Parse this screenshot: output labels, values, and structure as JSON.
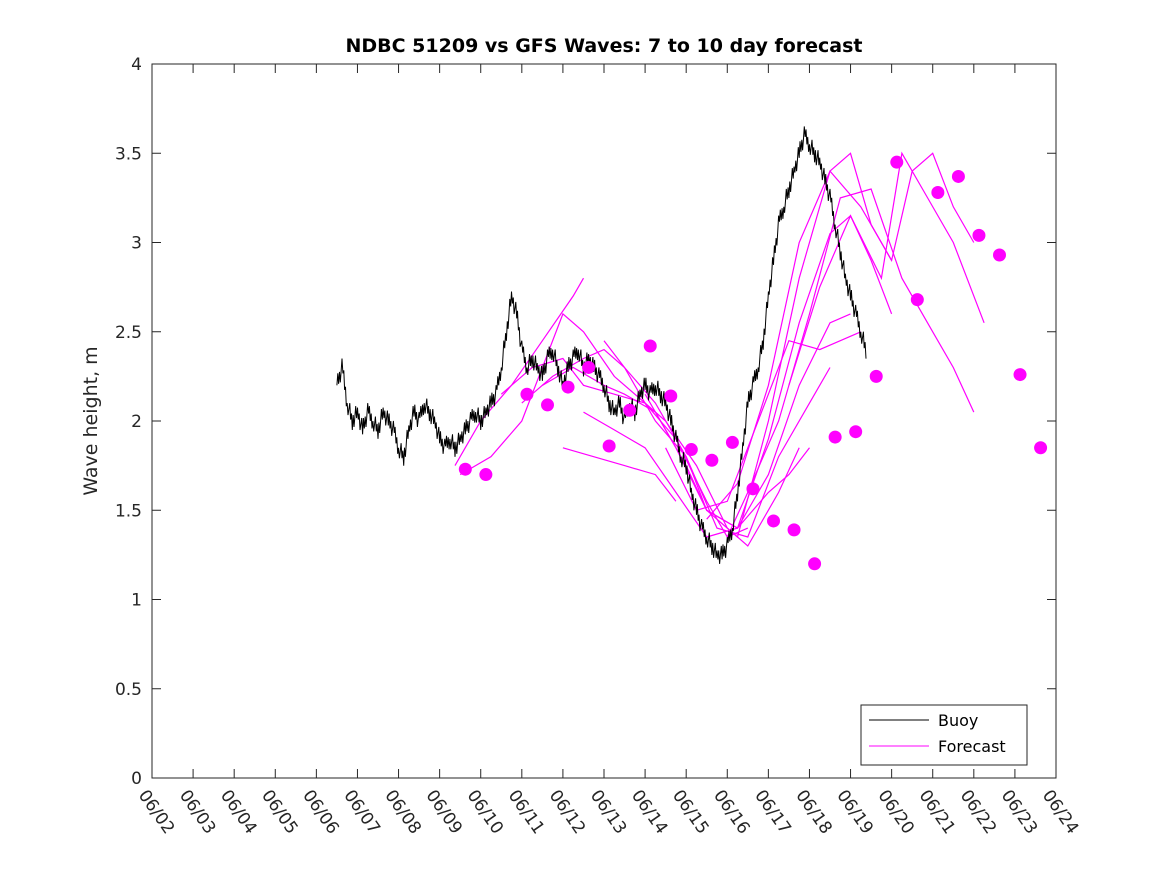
{
  "chart_data": {
    "type": "line",
    "title": "NDBC 51209 vs GFS Waves: 7 to 10 day forecast",
    "xlabel": "",
    "ylabel": "Wave height, m",
    "xlim": [
      "06/02",
      "06/24"
    ],
    "ylim": [
      0,
      4
    ],
    "x_ticks": [
      "06/02",
      "06/03",
      "06/04",
      "06/05",
      "06/06",
      "06/07",
      "06/08",
      "06/09",
      "06/10",
      "06/11",
      "06/12",
      "06/13",
      "06/14",
      "06/15",
      "06/16",
      "06/17",
      "06/18",
      "06/19",
      "06/20",
      "06/21",
      "06/22",
      "06/23",
      "06/24"
    ],
    "y_ticks": [
      "0",
      "0.5",
      "1",
      "1.5",
      "2",
      "2.5",
      "3",
      "3.5",
      "4"
    ],
    "grid": false,
    "legend": {
      "position": "bottom-right",
      "entries": [
        {
          "label": "Buoy",
          "color": "#000000"
        },
        {
          "label": "Forecast",
          "color": "#ff00ff"
        }
      ]
    },
    "colors": {
      "buoy": "#000000",
      "forecast": "#ff00ff"
    },
    "buoy": {
      "name": "Buoy",
      "points": [
        [
          "06/06 12:00",
          2.2
        ],
        [
          "06/06 15:00",
          2.3
        ],
        [
          "06/06 18:00",
          2.1
        ],
        [
          "06/06 21:00",
          2.0
        ],
        [
          "06/07 00:00",
          2.05
        ],
        [
          "06/07 03:00",
          1.95
        ],
        [
          "06/07 06:00",
          2.05
        ],
        [
          "06/07 09:00",
          2.0
        ],
        [
          "06/07 12:00",
          1.95
        ],
        [
          "06/07 15:00",
          2.05
        ],
        [
          "06/07 18:00",
          2.0
        ],
        [
          "06/07 21:00",
          1.95
        ],
        [
          "06/08 00:00",
          1.85
        ],
        [
          "06/08 03:00",
          1.8
        ],
        [
          "06/08 06:00",
          1.95
        ],
        [
          "06/08 09:00",
          2.05
        ],
        [
          "06/08 12:00",
          2.0
        ],
        [
          "06/08 15:00",
          2.1
        ],
        [
          "06/08 18:00",
          2.05
        ],
        [
          "06/08 21:00",
          2.0
        ],
        [
          "06/09 00:00",
          1.9
        ],
        [
          "06/09 03:00",
          1.85
        ],
        [
          "06/09 06:00",
          1.9
        ],
        [
          "06/09 09:00",
          1.85
        ],
        [
          "06/09 12:00",
          1.9
        ],
        [
          "06/09 15:00",
          1.95
        ],
        [
          "06/09 18:00",
          2.0
        ],
        [
          "06/09 21:00",
          2.05
        ],
        [
          "06/10 00:00",
          2.0
        ],
        [
          "06/10 03:00",
          2.05
        ],
        [
          "06/10 06:00",
          2.1
        ],
        [
          "06/10 09:00",
          2.15
        ],
        [
          "06/10 12:00",
          2.3
        ],
        [
          "06/10 15:00",
          2.5
        ],
        [
          "06/10 18:00",
          2.7
        ],
        [
          "06/10 21:00",
          2.6
        ],
        [
          "06/11 00:00",
          2.4
        ],
        [
          "06/11 03:00",
          2.3
        ],
        [
          "06/11 06:00",
          2.35
        ],
        [
          "06/11 09:00",
          2.3
        ],
        [
          "06/11 12:00",
          2.25
        ],
        [
          "06/11 15:00",
          2.35
        ],
        [
          "06/11 18:00",
          2.4
        ],
        [
          "06/11 21:00",
          2.3
        ],
        [
          "06/12 00:00",
          2.2
        ],
        [
          "06/12 03:00",
          2.3
        ],
        [
          "06/12 06:00",
          2.35
        ],
        [
          "06/12 09:00",
          2.4
        ],
        [
          "06/12 12:00",
          2.3
        ],
        [
          "06/12 15:00",
          2.35
        ],
        [
          "06/12 18:00",
          2.3
        ],
        [
          "06/12 21:00",
          2.25
        ],
        [
          "06/13 00:00",
          2.2
        ],
        [
          "06/13 03:00",
          2.1
        ],
        [
          "06/13 06:00",
          2.05
        ],
        [
          "06/13 09:00",
          2.1
        ],
        [
          "06/13 12:00",
          2.0
        ],
        [
          "06/13 15:00",
          2.1
        ],
        [
          "06/13 18:00",
          2.05
        ],
        [
          "06/13 21:00",
          2.15
        ],
        [
          "06/14 00:00",
          2.2
        ],
        [
          "06/14 03:00",
          2.15
        ],
        [
          "06/14 06:00",
          2.2
        ],
        [
          "06/14 09:00",
          2.15
        ],
        [
          "06/14 12:00",
          2.1
        ],
        [
          "06/14 15:00",
          2.0
        ],
        [
          "06/14 18:00",
          1.9
        ],
        [
          "06/14 21:00",
          1.8
        ],
        [
          "06/15 00:00",
          1.75
        ],
        [
          "06/15 03:00",
          1.6
        ],
        [
          "06/15 06:00",
          1.5
        ],
        [
          "06/15 09:00",
          1.4
        ],
        [
          "06/15 12:00",
          1.35
        ],
        [
          "06/15 15:00",
          1.3
        ],
        [
          "06/15 18:00",
          1.25
        ],
        [
          "06/15 21:00",
          1.25
        ],
        [
          "06/16 00:00",
          1.3
        ],
        [
          "06/16 03:00",
          1.4
        ],
        [
          "06/16 06:00",
          1.6
        ],
        [
          "06/16 09:00",
          1.85
        ],
        [
          "06/16 12:00",
          2.1
        ],
        [
          "06/16 15:00",
          2.2
        ],
        [
          "06/16 18:00",
          2.3
        ],
        [
          "06/16 21:00",
          2.45
        ],
        [
          "06/17 00:00",
          2.7
        ],
        [
          "06/17 03:00",
          2.9
        ],
        [
          "06/17 06:00",
          3.1
        ],
        [
          "06/17 09:00",
          3.2
        ],
        [
          "06/17 12:00",
          3.3
        ],
        [
          "06/17 15:00",
          3.4
        ],
        [
          "06/17 18:00",
          3.5
        ],
        [
          "06/17 21:00",
          3.6
        ],
        [
          "06/18 00:00",
          3.55
        ],
        [
          "06/18 03:00",
          3.5
        ],
        [
          "06/18 06:00",
          3.45
        ],
        [
          "06/18 09:00",
          3.35
        ],
        [
          "06/18 12:00",
          3.25
        ],
        [
          "06/18 15:00",
          3.1
        ],
        [
          "06/18 18:00",
          2.95
        ],
        [
          "06/18 21:00",
          2.8
        ],
        [
          "06/19 00:00",
          2.7
        ],
        [
          "06/19 03:00",
          2.6
        ],
        [
          "06/19 06:00",
          2.5
        ],
        [
          "06/19 09:00",
          2.4
        ]
      ]
    },
    "forecast_series": [
      {
        "points": [
          [
            "06/09 09:00",
            1.75
          ],
          [
            "06/10 00:00",
            2.0
          ],
          [
            "06/10 18:00",
            2.2
          ],
          [
            "06/11 12:00",
            2.45
          ],
          [
            "06/12 06:00",
            2.7
          ],
          [
            "06/12 12:00",
            2.8
          ]
        ]
      },
      {
        "points": [
          [
            "06/09 12:00",
            1.7
          ],
          [
            "06/10 06:00",
            1.8
          ],
          [
            "06/11 00:00",
            2.0
          ],
          [
            "06/11 12:00",
            2.3
          ],
          [
            "06/12 00:00",
            2.6
          ],
          [
            "06/12 12:00",
            2.5
          ],
          [
            "06/13 06:00",
            2.25
          ],
          [
            "06/14 00:00",
            2.1
          ],
          [
            "06/14 18:00",
            1.9
          ],
          [
            "06/15 12:00",
            1.55
          ],
          [
            "06/16 00:00",
            1.35
          ],
          [
            "06/16 12:00",
            1.4
          ]
        ]
      },
      {
        "points": [
          [
            "06/10 12:00",
            2.15
          ],
          [
            "06/11 06:00",
            2.3
          ],
          [
            "06/12 00:00",
            2.35
          ],
          [
            "06/12 12:00",
            2.2
          ],
          [
            "06/13 06:00",
            2.15
          ],
          [
            "06/14 00:00",
            2.1
          ],
          [
            "06/14 12:00",
            2.0
          ],
          [
            "06/15 06:00",
            1.75
          ],
          [
            "06/16 00:00",
            1.4
          ],
          [
            "06/16 12:00",
            1.3
          ],
          [
            "06/17 06:00",
            1.6
          ],
          [
            "06/17 18:00",
            1.85
          ]
        ]
      },
      {
        "points": [
          [
            "06/11 00:00",
            2.1
          ],
          [
            "06/11 18:00",
            2.25
          ],
          [
            "06/12 12:00",
            2.35
          ],
          [
            "06/13 00:00",
            2.4
          ],
          [
            "06/13 12:00",
            2.3
          ],
          [
            "06/14 06:00",
            2.0
          ],
          [
            "06/15 00:00",
            1.8
          ],
          [
            "06/15 18:00",
            1.4
          ],
          [
            "06/16 12:00",
            1.35
          ],
          [
            "06/17 06:00",
            1.8
          ],
          [
            "06/18 00:00",
            2.1
          ],
          [
            "06/18 12:00",
            2.3
          ]
        ]
      },
      {
        "points": [
          [
            "06/11 12:00",
            2.2
          ],
          [
            "06/12 06:00",
            2.3
          ],
          [
            "06/13 00:00",
            2.2
          ],
          [
            "06/13 12:00",
            2.15
          ],
          [
            "06/14 06:00",
            2.05
          ],
          [
            "06/15 00:00",
            1.75
          ],
          [
            "06/15 12:00",
            1.5
          ],
          [
            "06/16 06:00",
            1.4
          ],
          [
            "06/17 00:00",
            1.7
          ],
          [
            "06/17 18:00",
            2.2
          ],
          [
            "06/18 12:00",
            2.55
          ],
          [
            "06/19 00:00",
            2.6
          ]
        ]
      },
      {
        "points": [
          [
            "06/12 00:00",
            1.85
          ],
          [
            "06/12 18:00",
            1.8
          ],
          [
            "06/13 12:00",
            1.75
          ],
          [
            "06/14 06:00",
            1.7
          ],
          [
            "06/14 18:00",
            1.55
          ]
        ]
      },
      {
        "points": [
          [
            "06/12 12:00",
            2.05
          ],
          [
            "06/13 06:00",
            1.95
          ],
          [
            "06/14 00:00",
            1.85
          ],
          [
            "06/14 18:00",
            1.6
          ],
          [
            "06/15 12:00",
            1.35
          ],
          [
            "06/16 06:00",
            1.4
          ],
          [
            "06/17 00:00",
            1.9
          ],
          [
            "06/17 18:00",
            2.55
          ],
          [
            "06/18 12:00",
            3.05
          ],
          [
            "06/19 00:00",
            3.15
          ],
          [
            "06/19 12:00",
            2.9
          ],
          [
            "06/20 00:00",
            2.6
          ]
        ]
      },
      {
        "points": [
          [
            "06/13 00:00",
            2.45
          ],
          [
            "06/13 12:00",
            2.3
          ],
          [
            "06/14 06:00",
            2.1
          ],
          [
            "06/15 00:00",
            1.8
          ],
          [
            "06/15 12:00",
            1.5
          ],
          [
            "06/16 06:00",
            1.35
          ],
          [
            "06/17 00:00",
            2.0
          ],
          [
            "06/17 18:00",
            2.8
          ],
          [
            "06/18 12:00",
            3.4
          ],
          [
            "06/19 00:00",
            3.5
          ],
          [
            "06/19 12:00",
            3.1
          ],
          [
            "06/20 00:00",
            2.9
          ]
        ]
      },
      {
        "points": [
          [
            "06/14 00:00",
            2.15
          ],
          [
            "06/14 18:00",
            1.85
          ],
          [
            "06/15 12:00",
            1.5
          ],
          [
            "06/16 06:00",
            1.4
          ],
          [
            "06/17 00:00",
            1.6
          ],
          [
            "06/17 12:00",
            1.7
          ],
          [
            "06/18 00:00",
            1.85
          ]
        ]
      },
      {
        "points": [
          [
            "06/14 12:00",
            1.85
          ],
          [
            "06/15 06:00",
            1.5
          ],
          [
            "06/16 00:00",
            1.55
          ],
          [
            "06/16 18:00",
            2.0
          ],
          [
            "06/17 12:00",
            2.45
          ],
          [
            "06/18 06:00",
            2.4
          ],
          [
            "06/18 18:00",
            2.45
          ],
          [
            "06/19 06:00",
            2.5
          ]
        ]
      },
      {
        "points": [
          [
            "06/15 12:00",
            1.45
          ],
          [
            "06/16 06:00",
            1.65
          ],
          [
            "06/17 00:00",
            2.2
          ],
          [
            "06/17 18:00",
            3.0
          ],
          [
            "06/18 12:00",
            3.4
          ],
          [
            "06/19 06:00",
            3.2
          ],
          [
            "06/20 00:00",
            2.9
          ],
          [
            "06/20 12:00",
            3.4
          ],
          [
            "06/21 00:00",
            3.5
          ],
          [
            "06/21 12:00",
            3.2
          ],
          [
            "06/22 00:00",
            3.0
          ]
        ]
      },
      {
        "points": [
          [
            "06/16 00:00",
            1.35
          ],
          [
            "06/16 12:00",
            1.6
          ],
          [
            "06/17 06:00",
            2.0
          ],
          [
            "06/18 00:00",
            2.6
          ],
          [
            "06/18 18:00",
            3.25
          ],
          [
            "06/19 12:00",
            3.3
          ],
          [
            "06/20 06:00",
            2.8
          ],
          [
            "06/21 00:00",
            2.5
          ],
          [
            "06/21 12:00",
            2.3
          ],
          [
            "06/22 00:00",
            2.05
          ]
        ]
      },
      {
        "points": [
          [
            "06/17 12:00",
            2.2
          ],
          [
            "06/18 06:00",
            2.75
          ],
          [
            "06/19 00:00",
            3.15
          ],
          [
            "06/19 18:00",
            2.8
          ],
          [
            "06/20 06:00",
            3.5
          ],
          [
            "06/20 18:00",
            3.3
          ],
          [
            "06/21 12:00",
            3.0
          ],
          [
            "06/22 06:00",
            2.55
          ]
        ]
      }
    ],
    "forecast_markers": [
      [
        "06/09 15:00",
        1.73
      ],
      [
        "06/10 03:00",
        1.7
      ],
      [
        "06/11 03:00",
        2.15
      ],
      [
        "06/11 15:00",
        2.09
      ],
      [
        "06/12 03:00",
        2.19
      ],
      [
        "06/12 15:00",
        2.3
      ],
      [
        "06/13 03:00",
        1.86
      ],
      [
        "06/13 15:00",
        2.06
      ],
      [
        "06/14 03:00",
        2.42
      ],
      [
        "06/14 15:00",
        2.14
      ],
      [
        "06/15 03:00",
        1.84
      ],
      [
        "06/15 15:00",
        1.78
      ],
      [
        "06/16 03:00",
        1.88
      ],
      [
        "06/16 15:00",
        1.62
      ],
      [
        "06/17 03:00",
        1.44
      ],
      [
        "06/17 15:00",
        1.39
      ],
      [
        "06/18 03:00",
        1.2
      ],
      [
        "06/18 15:00",
        1.91
      ],
      [
        "06/19 03:00",
        1.94
      ],
      [
        "06/19 15:00",
        2.25
      ],
      [
        "06/20 03:00",
        3.45
      ],
      [
        "06/20 15:00",
        2.68
      ],
      [
        "06/21 03:00",
        3.28
      ],
      [
        "06/21 15:00",
        3.37
      ],
      [
        "06/22 03:00",
        3.04
      ],
      [
        "06/22 15:00",
        2.93
      ],
      [
        "06/23 03:00",
        2.26
      ],
      [
        "06/23 15:00",
        1.85
      ]
    ]
  }
}
